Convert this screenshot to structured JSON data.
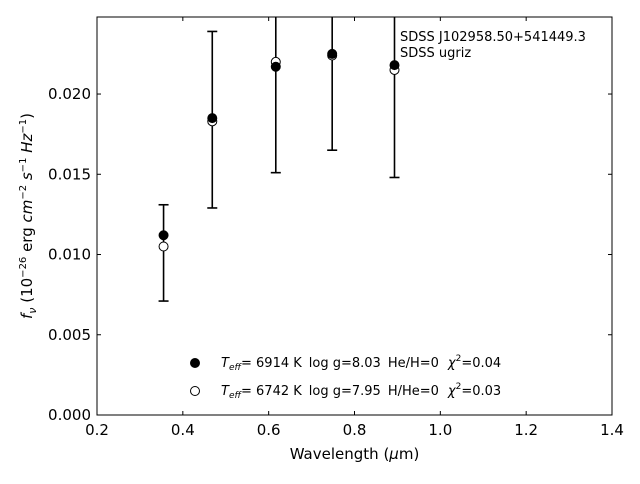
{
  "chart_data": {
    "type": "scatter",
    "annotations": [
      "SDSS J102958.50+541449.3",
      "SDSS ugriz"
    ],
    "xlabel_text": "Wavelength (",
    "xlabel_unit_symbol": "μ",
    "xlabel_unit_rest": "m)",
    "ylabel": {
      "f": "f",
      "nu": "ν",
      "open": " (10",
      "exp": "−26",
      "erg": " erg ",
      "cm": "cm",
      "cm_exp": "−2",
      "s": " s",
      "s_exp": "−1",
      "hz": " Hz",
      "hz_exp": "−1",
      "close": ")"
    },
    "xlim": [
      0.2,
      1.4
    ],
    "ylim": [
      0.0,
      0.0248
    ],
    "xticks": [
      0.2,
      0.4,
      0.6,
      0.8,
      1.0,
      1.2,
      1.4
    ],
    "xtick_labels": [
      "0.2",
      "0.4",
      "0.6",
      "0.8",
      "1.0",
      "1.2",
      "1.4"
    ],
    "yticks": [
      0.0,
      0.005,
      0.01,
      0.015,
      0.02
    ],
    "ytick_labels": [
      "0.000",
      "0.005",
      "0.010",
      "0.015",
      "0.020"
    ],
    "grid": false,
    "legend_position": "bottom-center",
    "observations": [
      {
        "x": 0.3551,
        "y": 0.0111,
        "yerr_low": 0.0071,
        "yerr_high": 0.0131
      },
      {
        "x": 0.4686,
        "y": 0.0185,
        "yerr_low": 0.0129,
        "yerr_high": 0.0239
      },
      {
        "x": 0.6166,
        "y": 0.0219,
        "yerr_low": 0.0151,
        "yerr_high": 0.0248
      },
      {
        "x": 0.748,
        "y": 0.0225,
        "yerr_low": 0.0165,
        "yerr_high": 0.0248
      },
      {
        "x": 0.8932,
        "y": 0.022,
        "yerr_low": 0.0148,
        "yerr_high": 0.0248
      }
    ],
    "series": [
      {
        "marker": "filled",
        "legend": {
          "teff_sym": "T",
          "teff_sub": "eff",
          "eq": "=  ",
          "teff": "6914 K",
          "logg": "log g=8.03",
          "comp": "He/H=0",
          "chi_sym": "χ",
          "chi_exp": "2",
          "chi_val": "=0.04"
        },
        "x": [
          0.3551,
          0.4686,
          0.6166,
          0.748,
          0.8932
        ],
        "values": [
          0.0112,
          0.0185,
          0.0217,
          0.0225,
          0.0218
        ]
      },
      {
        "marker": "open",
        "legend": {
          "teff_sym": "T",
          "teff_sub": "eff",
          "eq": "=  ",
          "teff": "6742 K",
          "logg": "log g=7.95",
          "comp": "H/He=0",
          "chi_sym": "χ",
          "chi_exp": "2",
          "chi_val": "=0.03"
        },
        "x": [
          0.3551,
          0.4686,
          0.6166,
          0.748,
          0.8932
        ],
        "values": [
          0.0105,
          0.0183,
          0.022,
          0.0224,
          0.0215
        ]
      }
    ],
    "colors": {
      "marker": "#000000",
      "axis": "#000000",
      "background": "#ffffff"
    }
  }
}
